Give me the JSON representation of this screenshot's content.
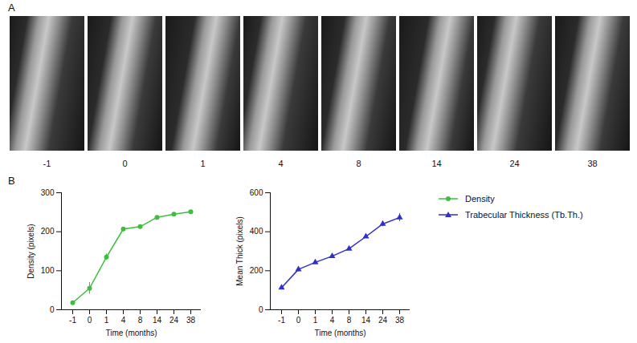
{
  "figure": {
    "panel_a": {
      "letter": "A",
      "labels": [
        -1,
        0,
        1,
        4,
        8,
        14,
        24,
        38
      ]
    },
    "panel_b_letter": "B",
    "legend": "right"
  },
  "chart_data": [
    {
      "type": "line",
      "x_label": "Time (months)",
      "y_label": "Density (pixels)",
      "categories": [
        "-1",
        "0",
        "1",
        "4",
        "8",
        "14",
        "24",
        "38"
      ],
      "series": [
        {
          "name": "Density",
          "color": "#3cbf3c",
          "marker": "circle",
          "values": [
            18,
            55,
            135,
            207,
            213,
            237,
            245,
            251
          ],
          "errors": [
            2,
            15,
            8,
            2,
            4,
            2,
            2,
            2
          ]
        }
      ],
      "ylim": [
        0,
        300
      ],
      "yticks": [
        0,
        100,
        200,
        300
      ]
    },
    {
      "type": "line",
      "x_label": "Time (months)",
      "y_label": "Mean Thick (pixels)",
      "categories": [
        "-1",
        "0",
        "1",
        "4",
        "8",
        "14",
        "24",
        "38"
      ],
      "series": [
        {
          "name": "Trabecular Thickness (Tb.Th.)",
          "color": "#3030c8",
          "marker": "triangle",
          "values": [
            113,
            207,
            243,
            275,
            313,
            375,
            440,
            473
          ],
          "errors": [
            5,
            12,
            10,
            12,
            6,
            5,
            14,
            20
          ]
        }
      ],
      "ylim": [
        0,
        600
      ],
      "yticks": [
        0,
        200,
        400,
        600
      ]
    }
  ]
}
